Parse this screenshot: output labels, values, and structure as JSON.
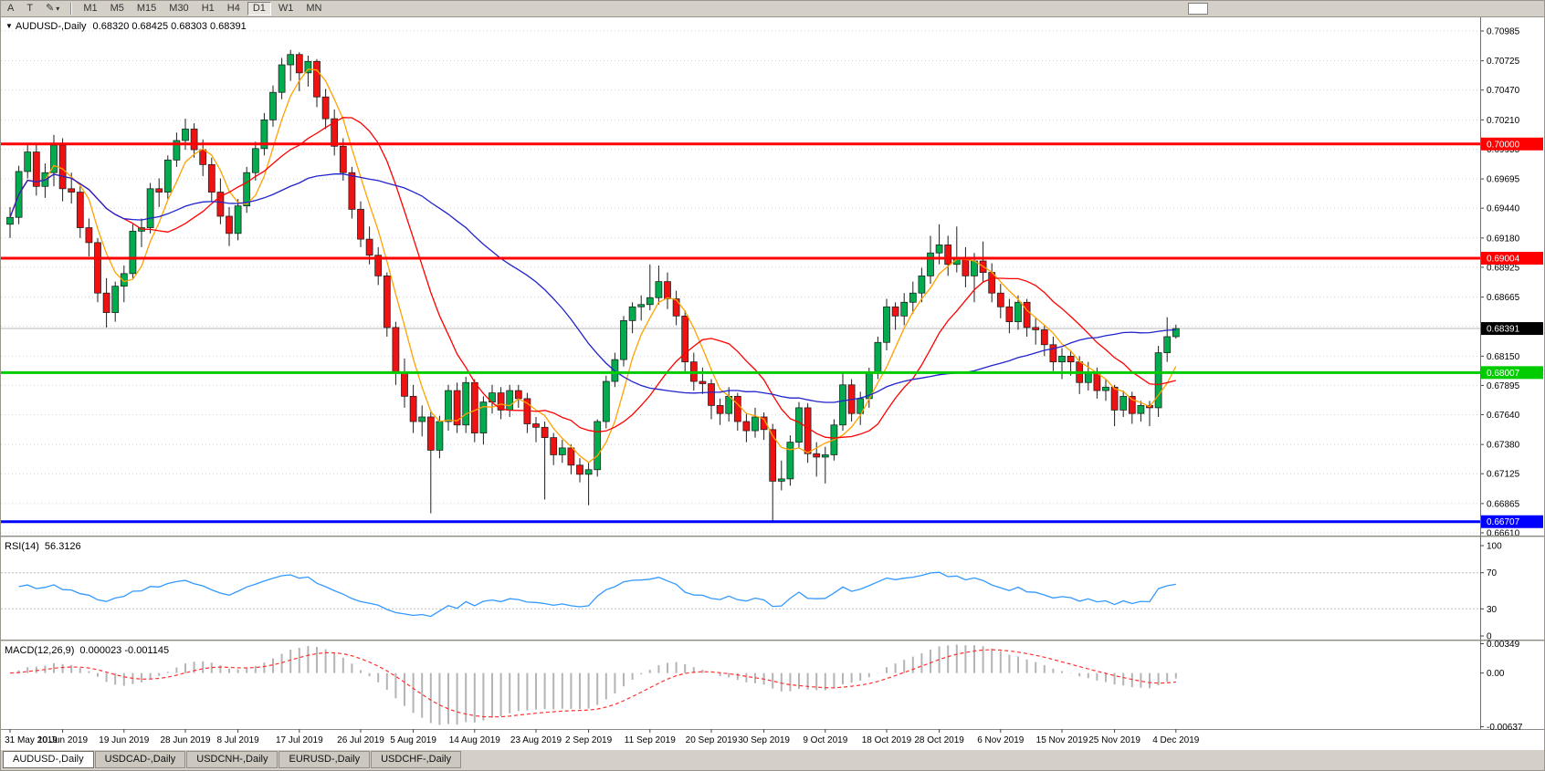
{
  "toolbar": {
    "left_buttons": [
      "A",
      "T"
    ],
    "timeframes": [
      "M1",
      "M5",
      "M15",
      "M30",
      "H1",
      "H4",
      "D1",
      "W1",
      "MN"
    ],
    "active_timeframe": "D1"
  },
  "icons": {
    "dropdown": "▼",
    "pencil": "✎",
    "caret": "▾"
  },
  "tabs": {
    "items": [
      "AUDUSD-,Daily",
      "USDCAD-,Daily",
      "USDCNH-,Daily",
      "EURUSD-,Daily",
      "USDCHF-,Daily"
    ],
    "active": "AUDUSD-,Daily"
  },
  "chart_data": {
    "type": "candlestick",
    "symbol_label": "AUDUSD-,Daily",
    "ohlc_text": "0.68320 0.68425 0.68303 0.68391",
    "current_ohlc": {
      "open": "0.68320",
      "high": "0.68425",
      "low": "0.68303",
      "close": "0.68391"
    },
    "y_ticks": [
      "0.70985",
      "0.70725",
      "0.70470",
      "0.70210",
      "0.69955",
      "0.69695",
      "0.69440",
      "0.69180",
      "0.68925",
      "0.68665",
      "0.68410",
      "0.68150",
      "0.67895",
      "0.67640",
      "0.67380",
      "0.67125",
      "0.66865",
      "0.66610"
    ],
    "x_labels": [
      {
        "i": 0,
        "t": "31 May 2019"
      },
      {
        "i": 6,
        "t": "10 Jun 2019"
      },
      {
        "i": 13,
        "t": "19 Jun 2019"
      },
      {
        "i": 20,
        "t": "28 Jun 2019"
      },
      {
        "i": 26,
        "t": "8 Jul 2019"
      },
      {
        "i": 33,
        "t": "17 Jul 2019"
      },
      {
        "i": 40,
        "t": "26 Jul 2019"
      },
      {
        "i": 46,
        "t": "5 Aug 2019"
      },
      {
        "i": 53,
        "t": "14 Aug 2019"
      },
      {
        "i": 60,
        "t": "23 Aug 2019"
      },
      {
        "i": 66,
        "t": "2 Sep 2019"
      },
      {
        "i": 73,
        "t": "11 Sep 2019"
      },
      {
        "i": 80,
        "t": "20 Sep 2019"
      },
      {
        "i": 86,
        "t": "30 Sep 2019"
      },
      {
        "i": 93,
        "t": "9 Oct 2019"
      },
      {
        "i": 100,
        "t": "18 Oct 2019"
      },
      {
        "i": 106,
        "t": "28 Oct 2019"
      },
      {
        "i": 113,
        "t": "6 Nov 2019"
      },
      {
        "i": 120,
        "t": "15 Nov 2019"
      },
      {
        "i": 126,
        "t": "25 Nov 2019"
      },
      {
        "i": 133,
        "t": "4 Dec 2019"
      }
    ],
    "hlines": [
      {
        "value": 0.7,
        "label": "0.70000",
        "color": "#ff0000",
        "width": 3
      },
      {
        "value": 0.69004,
        "label": "0.69004",
        "color": "#ff0000",
        "width": 3
      },
      {
        "value": 0.68007,
        "label": "0.68007",
        "color": "#00cc00",
        "width": 3
      },
      {
        "value": 0.66707,
        "label": "0.66707",
        "color": "#0000ff",
        "width": 3
      }
    ],
    "current_price": {
      "value": 0.68391,
      "label": "0.68391",
      "badge_color": "#000000",
      "line_color": "#b8b8b8"
    },
    "moving_averages": [
      {
        "period": 5,
        "color": "#ffa200"
      },
      {
        "period": 13,
        "color": "#ff0000"
      },
      {
        "period": 34,
        "color": "#2222cc"
      }
    ],
    "rsi": {
      "label": "RSI(14)",
      "value_text": "56.3126",
      "period": 14,
      "color": "#3399ff",
      "levels": [
        70,
        30
      ],
      "ticks": [
        "100",
        "70",
        "30",
        "0"
      ]
    },
    "macd": {
      "label": "MACD(12,26,9)",
      "value_text": "0.000023 -0.001145",
      "fast": 12,
      "slow": 26,
      "signal": 9,
      "hist_color": "#b4b4b4",
      "signal_color": "#ff3030",
      "ticks": [
        {
          "v": 0.00349,
          "label": "0.00349"
        },
        {
          "v": 0,
          "label": "0.00"
        },
        {
          "v": -0.00637,
          "label": "-0.00637"
        }
      ]
    },
    "colors": {
      "bg": "#ffffff",
      "grid": "#cfcfcf",
      "axis_text": "#000000",
      "up": "#00ac4e",
      "down": "#ee1212",
      "outline": "#1e1e1e"
    },
    "candles": [
      [
        0.693,
        0.6945,
        0.6918,
        0.6936
      ],
      [
        0.6936,
        0.6981,
        0.693,
        0.6976
      ],
      [
        0.6976,
        0.7,
        0.697,
        0.6993
      ],
      [
        0.6993,
        0.7,
        0.6955,
        0.6963
      ],
      [
        0.6963,
        0.6983,
        0.6953,
        0.6975
      ],
      [
        0.6975,
        0.7008,
        0.6963,
        0.6999
      ],
      [
        0.6999,
        0.7005,
        0.695,
        0.6961
      ],
      [
        0.6961,
        0.6975,
        0.6948,
        0.6958
      ],
      [
        0.6958,
        0.6963,
        0.6918,
        0.6927
      ],
      [
        0.6927,
        0.6935,
        0.6902,
        0.6914
      ],
      [
        0.6914,
        0.6918,
        0.6862,
        0.687
      ],
      [
        0.687,
        0.6883,
        0.684,
        0.6853
      ],
      [
        0.6853,
        0.688,
        0.6845,
        0.6876
      ],
      [
        0.6876,
        0.6894,
        0.6862,
        0.6887
      ],
      [
        0.6887,
        0.693,
        0.6883,
        0.6924
      ],
      [
        0.6924,
        0.6935,
        0.691,
        0.6927
      ],
      [
        0.6927,
        0.6966,
        0.6922,
        0.6961
      ],
      [
        0.6961,
        0.697,
        0.6945,
        0.6958
      ],
      [
        0.6958,
        0.699,
        0.6952,
        0.6986
      ],
      [
        0.6986,
        0.701,
        0.698,
        0.7003
      ],
      [
        0.7003,
        0.7022,
        0.6995,
        0.7013
      ],
      [
        0.7013,
        0.7018,
        0.6988,
        0.6995
      ],
      [
        0.6995,
        0.7004,
        0.6972,
        0.6982
      ],
      [
        0.6982,
        0.6988,
        0.695,
        0.6958
      ],
      [
        0.6958,
        0.697,
        0.693,
        0.6937
      ],
      [
        0.6937,
        0.6945,
        0.6911,
        0.6922
      ],
      [
        0.6922,
        0.6952,
        0.6916,
        0.6946
      ],
      [
        0.6946,
        0.698,
        0.694,
        0.6975
      ],
      [
        0.6975,
        0.7002,
        0.6968,
        0.6996
      ],
      [
        0.6996,
        0.7027,
        0.699,
        0.7021
      ],
      [
        0.7021,
        0.7051,
        0.7015,
        0.7045
      ],
      [
        0.7045,
        0.7075,
        0.7039,
        0.7069
      ],
      [
        0.7069,
        0.7082,
        0.7055,
        0.7078
      ],
      [
        0.7078,
        0.708,
        0.7046,
        0.7062
      ],
      [
        0.7062,
        0.7077,
        0.705,
        0.7072
      ],
      [
        0.7072,
        0.7074,
        0.7032,
        0.7041
      ],
      [
        0.7041,
        0.7048,
        0.7013,
        0.7022
      ],
      [
        0.7022,
        0.703,
        0.699,
        0.6998
      ],
      [
        0.6998,
        0.7005,
        0.6968,
        0.6975
      ],
      [
        0.6975,
        0.698,
        0.6935,
        0.6943
      ],
      [
        0.6943,
        0.695,
        0.691,
        0.6917
      ],
      [
        0.6917,
        0.6928,
        0.6895,
        0.6903
      ],
      [
        0.6903,
        0.691,
        0.6877,
        0.6885
      ],
      [
        0.6885,
        0.6888,
        0.6832,
        0.684
      ],
      [
        0.684,
        0.6845,
        0.679,
        0.68
      ],
      [
        0.68,
        0.6813,
        0.677,
        0.678
      ],
      [
        0.678,
        0.679,
        0.6748,
        0.6758
      ],
      [
        0.6758,
        0.6772,
        0.6745,
        0.6762
      ],
      [
        0.6762,
        0.6768,
        0.6678,
        0.6733
      ],
      [
        0.6733,
        0.6763,
        0.6726,
        0.6758
      ],
      [
        0.6758,
        0.679,
        0.675,
        0.6785
      ],
      [
        0.6785,
        0.6792,
        0.6748,
        0.6755
      ],
      [
        0.6755,
        0.6797,
        0.6748,
        0.6792
      ],
      [
        0.6792,
        0.6795,
        0.674,
        0.6748
      ],
      [
        0.6748,
        0.678,
        0.6738,
        0.6775
      ],
      [
        0.6775,
        0.679,
        0.6765,
        0.6783
      ],
      [
        0.6783,
        0.6788,
        0.676,
        0.6768
      ],
      [
        0.6768,
        0.679,
        0.6762,
        0.6785
      ],
      [
        0.6785,
        0.679,
        0.677,
        0.6778
      ],
      [
        0.6778,
        0.6783,
        0.6748,
        0.6756
      ],
      [
        0.6756,
        0.6762,
        0.674,
        0.6753
      ],
      [
        0.6753,
        0.6758,
        0.669,
        0.6744
      ],
      [
        0.6744,
        0.6748,
        0.672,
        0.6729
      ],
      [
        0.6729,
        0.6742,
        0.6722,
        0.6735
      ],
      [
        0.6735,
        0.6738,
        0.6712,
        0.672
      ],
      [
        0.672,
        0.6726,
        0.6705,
        0.6712
      ],
      [
        0.6712,
        0.6722,
        0.6685,
        0.6716
      ],
      [
        0.6716,
        0.676,
        0.671,
        0.6758
      ],
      [
        0.6758,
        0.6798,
        0.6752,
        0.6793
      ],
      [
        0.6793,
        0.6818,
        0.6788,
        0.6812
      ],
      [
        0.6812,
        0.685,
        0.6806,
        0.6846
      ],
      [
        0.6846,
        0.6862,
        0.6835,
        0.6858
      ],
      [
        0.6858,
        0.6868,
        0.6846,
        0.686
      ],
      [
        0.686,
        0.6895,
        0.6855,
        0.6866
      ],
      [
        0.6866,
        0.6894,
        0.686,
        0.688
      ],
      [
        0.688,
        0.6888,
        0.6856,
        0.6865
      ],
      [
        0.6865,
        0.6872,
        0.6842,
        0.685
      ],
      [
        0.685,
        0.6855,
        0.68,
        0.681
      ],
      [
        0.681,
        0.6818,
        0.6785,
        0.6793
      ],
      [
        0.6793,
        0.6805,
        0.6782,
        0.6791
      ],
      [
        0.6791,
        0.6795,
        0.676,
        0.6772
      ],
      [
        0.6772,
        0.6778,
        0.6755,
        0.6765
      ],
      [
        0.6765,
        0.6788,
        0.6758,
        0.678
      ],
      [
        0.678,
        0.6783,
        0.675,
        0.6758
      ],
      [
        0.6758,
        0.6765,
        0.674,
        0.675
      ],
      [
        0.675,
        0.677,
        0.6744,
        0.6762
      ],
      [
        0.6762,
        0.6766,
        0.6742,
        0.6751
      ],
      [
        0.6751,
        0.6756,
        0.66707,
        0.6706
      ],
      [
        0.6706,
        0.6724,
        0.6698,
        0.6708
      ],
      [
        0.6708,
        0.6746,
        0.6702,
        0.674
      ],
      [
        0.674,
        0.6775,
        0.6735,
        0.677
      ],
      [
        0.677,
        0.6774,
        0.6722,
        0.673
      ],
      [
        0.673,
        0.674,
        0.671,
        0.6727
      ],
      [
        0.6727,
        0.6736,
        0.6704,
        0.6729
      ],
      [
        0.6729,
        0.676,
        0.6724,
        0.6755
      ],
      [
        0.6755,
        0.68,
        0.675,
        0.679
      ],
      [
        0.679,
        0.6795,
        0.6758,
        0.6765
      ],
      [
        0.6765,
        0.6784,
        0.6755,
        0.6778
      ],
      [
        0.6778,
        0.6805,
        0.677,
        0.68
      ],
      [
        0.68,
        0.6832,
        0.6795,
        0.6827
      ],
      [
        0.6827,
        0.6865,
        0.682,
        0.6858
      ],
      [
        0.6858,
        0.6862,
        0.6838,
        0.685
      ],
      [
        0.685,
        0.687,
        0.6842,
        0.6862
      ],
      [
        0.6862,
        0.688,
        0.6852,
        0.687
      ],
      [
        0.687,
        0.6892,
        0.6862,
        0.6885
      ],
      [
        0.6885,
        0.692,
        0.6878,
        0.6905
      ],
      [
        0.6905,
        0.693,
        0.6895,
        0.6912
      ],
      [
        0.6912,
        0.692,
        0.6885,
        0.6895
      ],
      [
        0.6895,
        0.6928,
        0.6888,
        0.69
      ],
      [
        0.69,
        0.691,
        0.6875,
        0.6885
      ],
      [
        0.6885,
        0.6905,
        0.6862,
        0.6898
      ],
      [
        0.6898,
        0.6915,
        0.688,
        0.6888
      ],
      [
        0.6888,
        0.6896,
        0.6862,
        0.687
      ],
      [
        0.687,
        0.6878,
        0.6848,
        0.6858
      ],
      [
        0.6858,
        0.6865,
        0.6835,
        0.6845
      ],
      [
        0.6845,
        0.6868,
        0.6838,
        0.6862
      ],
      [
        0.6862,
        0.6865,
        0.6832,
        0.684
      ],
      [
        0.684,
        0.6848,
        0.6825,
        0.6838
      ],
      [
        0.6838,
        0.6842,
        0.6815,
        0.6825
      ],
      [
        0.6825,
        0.6832,
        0.6802,
        0.681
      ],
      [
        0.681,
        0.6822,
        0.6795,
        0.6815
      ],
      [
        0.6815,
        0.682,
        0.6798,
        0.681
      ],
      [
        0.681,
        0.6815,
        0.6782,
        0.6792
      ],
      [
        0.6792,
        0.681,
        0.6785,
        0.68
      ],
      [
        0.68,
        0.6805,
        0.6778,
        0.6785
      ],
      [
        0.6785,
        0.6795,
        0.6776,
        0.6788
      ],
      [
        0.6788,
        0.679,
        0.6754,
        0.6768
      ],
      [
        0.6768,
        0.6785,
        0.6762,
        0.678
      ],
      [
        0.678,
        0.6784,
        0.6756,
        0.6765
      ],
      [
        0.6765,
        0.6776,
        0.6758,
        0.6772
      ],
      [
        0.6772,
        0.6776,
        0.6754,
        0.677
      ],
      [
        0.677,
        0.6824,
        0.6762,
        0.6818
      ],
      [
        0.6818,
        0.6849,
        0.681,
        0.6832
      ],
      [
        0.6832,
        0.68425,
        0.68303,
        0.68391
      ]
    ]
  }
}
